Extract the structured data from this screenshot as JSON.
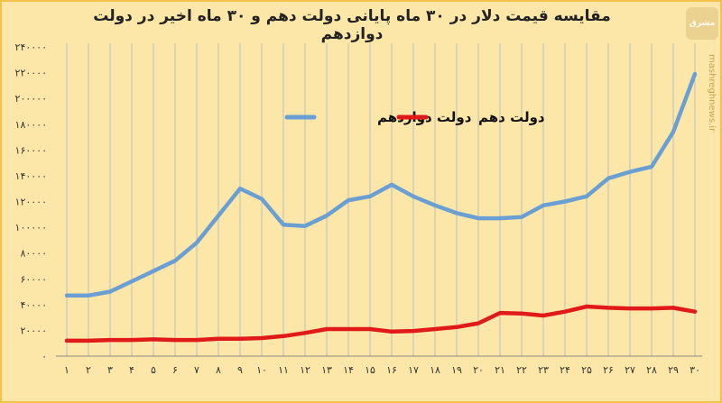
{
  "page": {
    "title": "مقایسه قیمت دلار در ۳۰ ماه پایانی دولت دهم و ۳۰ ماه اخیر در دولت دوازدهم",
    "logo_text": "مشرق",
    "site": "mashreghnews.ir"
  },
  "colors": {
    "background": "#fde7a8",
    "series_12": "#6a9fd4",
    "series_10": "#e01919",
    "grid": "#bdbdbd"
  },
  "chart_data": {
    "type": "line",
    "title": "مقایسه قیمت دلار در ۳۰ ماه پایانی دولت دهم و ۳۰ ماه اخیر در دولت دوازدهم",
    "xlabel": "",
    "ylabel": "",
    "x": [
      "۱",
      "۲",
      "۳",
      "۴",
      "۵",
      "۶",
      "۷",
      "۸",
      "۹",
      "۱۰",
      "۱۱",
      "۱۲",
      "۱۳",
      "۱۴",
      "۱۵",
      "۱۶",
      "۱۷",
      "۱۸",
      "۱۹",
      "۲۰",
      "۲۱",
      "۲۲",
      "۲۳",
      "۲۴",
      "۲۵",
      "۲۶",
      "۲۷",
      "۲۸",
      "۲۹",
      "۳۰"
    ],
    "ylim": [
      0,
      240000
    ],
    "yticks": [
      0,
      20000,
      40000,
      60000,
      80000,
      100000,
      120000,
      140000,
      160000,
      180000,
      200000,
      220000,
      240000
    ],
    "ytick_labels": [
      "۰",
      "۲۰۰۰۰",
      "۴۰۰۰۰",
      "۶۰۰۰۰",
      "۸۰۰۰۰",
      "۱۰۰۰۰۰",
      "۱۲۰۰۰۰",
      "۱۴۰۰۰۰",
      "۱۶۰۰۰۰",
      "۱۸۰۰۰۰",
      "۲۰۰۰۰۰",
      "۲۲۰۰۰۰",
      "۲۴۰۰۰۰"
    ],
    "grid": "vertical",
    "legend_position": "top-center",
    "series": [
      {
        "name": "دولت دوازدهم",
        "color": "#6a9fd4",
        "values": [
          47000,
          47000,
          50000,
          58000,
          66000,
          74000,
          88000,
          109000,
          130000,
          122000,
          102000,
          101000,
          109000,
          121000,
          124000,
          133000,
          124000,
          117000,
          111000,
          107000,
          107000,
          108000,
          117000,
          120000,
          124000,
          138000,
          143000,
          147000,
          174000,
          219000
        ]
      },
      {
        "name": "دولت دهم",
        "color": "#e01919",
        "values": [
          12000,
          12000,
          12500,
          12500,
          13000,
          12500,
          12500,
          13500,
          13500,
          14000,
          15500,
          18000,
          21000,
          21000,
          21000,
          19000,
          19500,
          21000,
          22500,
          25500,
          33500,
          33000,
          31500,
          34500,
          38500,
          37500,
          37000,
          37000,
          37500,
          34500
        ]
      }
    ]
  }
}
